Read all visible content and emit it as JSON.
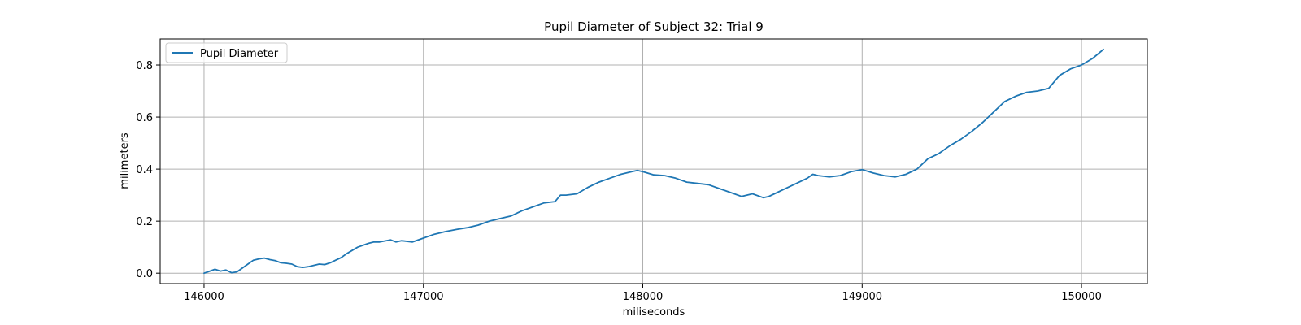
{
  "chart_data": {
    "type": "line",
    "title": "Pupil Diameter of Subject 32: Trial 9",
    "xlabel": "miliseconds",
    "ylabel": "milimeters",
    "xlim": [
      145800,
      150300
    ],
    "ylim": [
      -0.04,
      0.9
    ],
    "xticks": [
      146000,
      147000,
      148000,
      149000,
      150000
    ],
    "yticks": [
      0.0,
      0.2,
      0.4,
      0.6,
      0.8
    ],
    "xtick_labels": [
      "146000",
      "147000",
      "148000",
      "149000",
      "150000"
    ],
    "ytick_labels": [
      "0.0",
      "0.2",
      "0.4",
      "0.6",
      "0.8"
    ],
    "grid": true,
    "legend_position": "top-left",
    "series": [
      {
        "name": "Pupil Diameter",
        "color": "#1f77b4",
        "x": [
          146000,
          146050,
          146075,
          146100,
          146125,
          146150,
          146200,
          146225,
          146250,
          146275,
          146300,
          146325,
          146350,
          146375,
          146400,
          146425,
          146450,
          146475,
          146500,
          146525,
          146550,
          146575,
          146600,
          146625,
          146650,
          146700,
          146750,
          146775,
          146800,
          146850,
          146875,
          146900,
          146950,
          147000,
          147050,
          147100,
          147150,
          147200,
          147250,
          147300,
          147350,
          147400,
          147450,
          147500,
          147550,
          147600,
          147625,
          147650,
          147700,
          147750,
          147800,
          147850,
          147900,
          147950,
          147975,
          148000,
          148050,
          148100,
          148150,
          148200,
          148250,
          148300,
          148350,
          148400,
          148450,
          148500,
          148550,
          148575,
          148600,
          148650,
          148700,
          148750,
          148775,
          148800,
          148850,
          148900,
          148950,
          149000,
          149050,
          149100,
          149150,
          149200,
          149250,
          149300,
          149350,
          149400,
          149450,
          149500,
          149550,
          149600,
          149650,
          149700,
          149750,
          149800,
          149850,
          149900,
          149950,
          150000,
          150050,
          150100
        ],
        "y": [
          0.0,
          0.015,
          0.008,
          0.012,
          0.002,
          0.005,
          0.035,
          0.05,
          0.055,
          0.058,
          0.052,
          0.048,
          0.04,
          0.038,
          0.035,
          0.025,
          0.022,
          0.025,
          0.03,
          0.035,
          0.033,
          0.04,
          0.05,
          0.06,
          0.075,
          0.1,
          0.115,
          0.12,
          0.12,
          0.128,
          0.12,
          0.125,
          0.12,
          0.135,
          0.15,
          0.16,
          0.168,
          0.175,
          0.185,
          0.2,
          0.21,
          0.22,
          0.24,
          0.255,
          0.27,
          0.275,
          0.3,
          0.3,
          0.305,
          0.33,
          0.35,
          0.365,
          0.38,
          0.39,
          0.395,
          0.39,
          0.378,
          0.375,
          0.365,
          0.35,
          0.345,
          0.34,
          0.325,
          0.31,
          0.295,
          0.305,
          0.29,
          0.295,
          0.305,
          0.325,
          0.345,
          0.365,
          0.38,
          0.375,
          0.37,
          0.375,
          0.39,
          0.398,
          0.385,
          0.375,
          0.37,
          0.38,
          0.4,
          0.44,
          0.46,
          0.49,
          0.515,
          0.545,
          0.58,
          0.62,
          0.66,
          0.68,
          0.695,
          0.7,
          0.71,
          0.76,
          0.785,
          0.8,
          0.825,
          0.86
        ]
      }
    ]
  }
}
